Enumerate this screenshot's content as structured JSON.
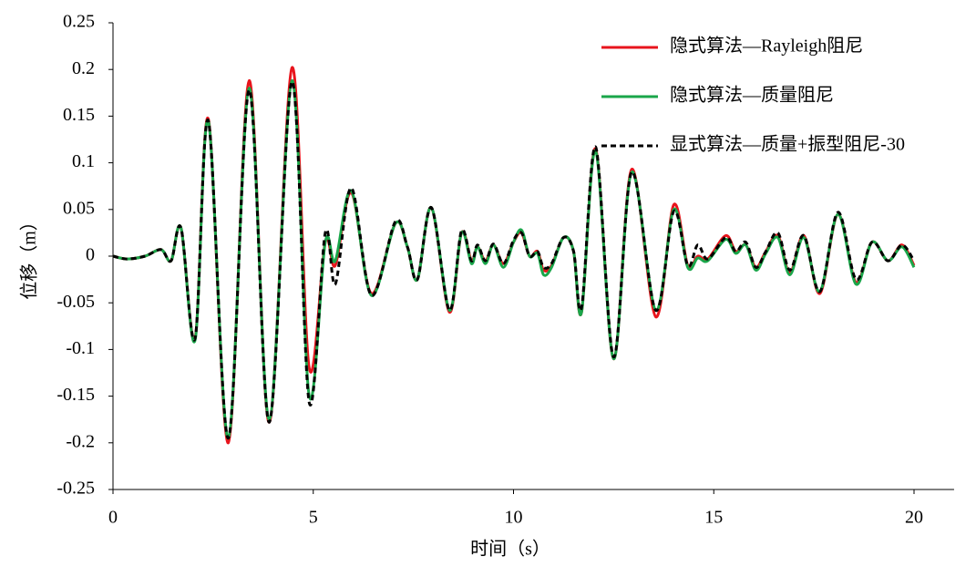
{
  "chart_data": {
    "type": "line",
    "xlabel": "时间（s）",
    "ylabel": "位移（m）",
    "x": [
      0,
      0.35,
      0.8,
      1.2,
      1.45,
      1.7,
      2.05,
      2.38,
      2.88,
      3.4,
      3.9,
      4.47,
      4.9,
      5.3,
      5.55,
      5.95,
      6.45,
      7.05,
      7.35,
      7.6,
      7.95,
      8.4,
      8.7,
      8.95,
      9.1,
      9.3,
      9.5,
      9.75,
      10.0,
      10.2,
      10.4,
      10.6,
      10.75,
      10.95,
      11.25,
      11.5,
      11.7,
      12.05,
      12.5,
      12.95,
      13.55,
      14.0,
      14.35,
      14.6,
      14.85,
      15.3,
      15.55,
      15.8,
      16.05,
      16.3,
      16.6,
      16.9,
      17.25,
      17.65,
      18.1,
      18.55,
      18.95,
      19.35,
      19.7,
      20.0
    ],
    "series": [
      {
        "name": "隐式算法—Rayleigh阻尼",
        "color": "#e8141c",
        "dash": false,
        "values": [
          0,
          -0.003,
          0,
          0.007,
          -0.005,
          0.03,
          -0.088,
          0.147,
          -0.2,
          0.188,
          -0.178,
          0.202,
          -0.12,
          0.015,
          -0.01,
          0.068,
          -0.04,
          0.035,
          0.01,
          -0.025,
          0.052,
          -0.06,
          0.025,
          -0.005,
          0.01,
          -0.005,
          0.012,
          -0.008,
          0.015,
          0.025,
          0,
          0.005,
          -0.015,
          -0.01,
          0.02,
          0.005,
          -0.06,
          0.115,
          -0.11,
          0.093,
          -0.065,
          0.055,
          -0.01,
          0,
          -0.003,
          0.022,
          0.005,
          0.012,
          -0.012,
          0.005,
          0.022,
          -0.018,
          0.022,
          -0.04,
          0.045,
          -0.028,
          0.015,
          -0.005,
          0.012,
          -0.01
        ]
      },
      {
        "name": "隐式算法—质量阻尼",
        "color": "#1aa64a",
        "dash": false,
        "values": [
          0,
          -0.003,
          0,
          0.007,
          -0.005,
          0.03,
          -0.09,
          0.145,
          -0.195,
          0.18,
          -0.175,
          0.188,
          -0.15,
          0.015,
          -0.005,
          0.07,
          -0.042,
          0.035,
          0.01,
          -0.025,
          0.052,
          -0.058,
          0.025,
          -0.008,
          0.01,
          -0.008,
          0.012,
          -0.012,
          0.015,
          0.028,
          0,
          0.003,
          -0.02,
          -0.012,
          0.02,
          0.005,
          -0.06,
          0.113,
          -0.11,
          0.09,
          -0.058,
          0.05,
          -0.012,
          -0.002,
          -0.005,
          0.018,
          0.003,
          0.012,
          -0.015,
          0.003,
          0.02,
          -0.02,
          0.02,
          -0.038,
          0.045,
          -0.03,
          0.015,
          -0.005,
          0.01,
          -0.012
        ]
      },
      {
        "name": "显式算法—质量+振型阻尼-30",
        "color": "#000000",
        "dash": true,
        "values": [
          0,
          -0.003,
          0,
          0.007,
          -0.005,
          0.03,
          -0.088,
          0.145,
          -0.195,
          0.178,
          -0.178,
          0.187,
          -0.157,
          0.025,
          -0.03,
          0.073,
          -0.042,
          0.037,
          0.01,
          -0.025,
          0.052,
          -0.058,
          0.027,
          -0.005,
          0.012,
          -0.005,
          0.013,
          -0.008,
          0.017,
          0.025,
          0,
          0.005,
          -0.012,
          -0.008,
          0.02,
          0.005,
          -0.055,
          0.117,
          -0.108,
          0.09,
          -0.058,
          0.048,
          -0.01,
          0.012,
          -0.003,
          0.02,
          0.005,
          0.015,
          -0.012,
          0.005,
          0.025,
          -0.015,
          0.022,
          -0.038,
          0.047,
          -0.025,
          0.015,
          -0.005,
          0.012,
          -0.005
        ]
      }
    ],
    "xlim": [
      0,
      21
    ],
    "xticks": [
      0,
      5,
      10,
      15,
      20
    ],
    "ylim": [
      -0.25,
      0.25
    ],
    "yticks": [
      -0.25,
      -0.2,
      -0.15,
      -0.1,
      -0.05,
      0,
      0.05,
      0.1,
      0.15,
      0.2,
      0.25
    ],
    "grid": false,
    "legend": "upper right"
  }
}
